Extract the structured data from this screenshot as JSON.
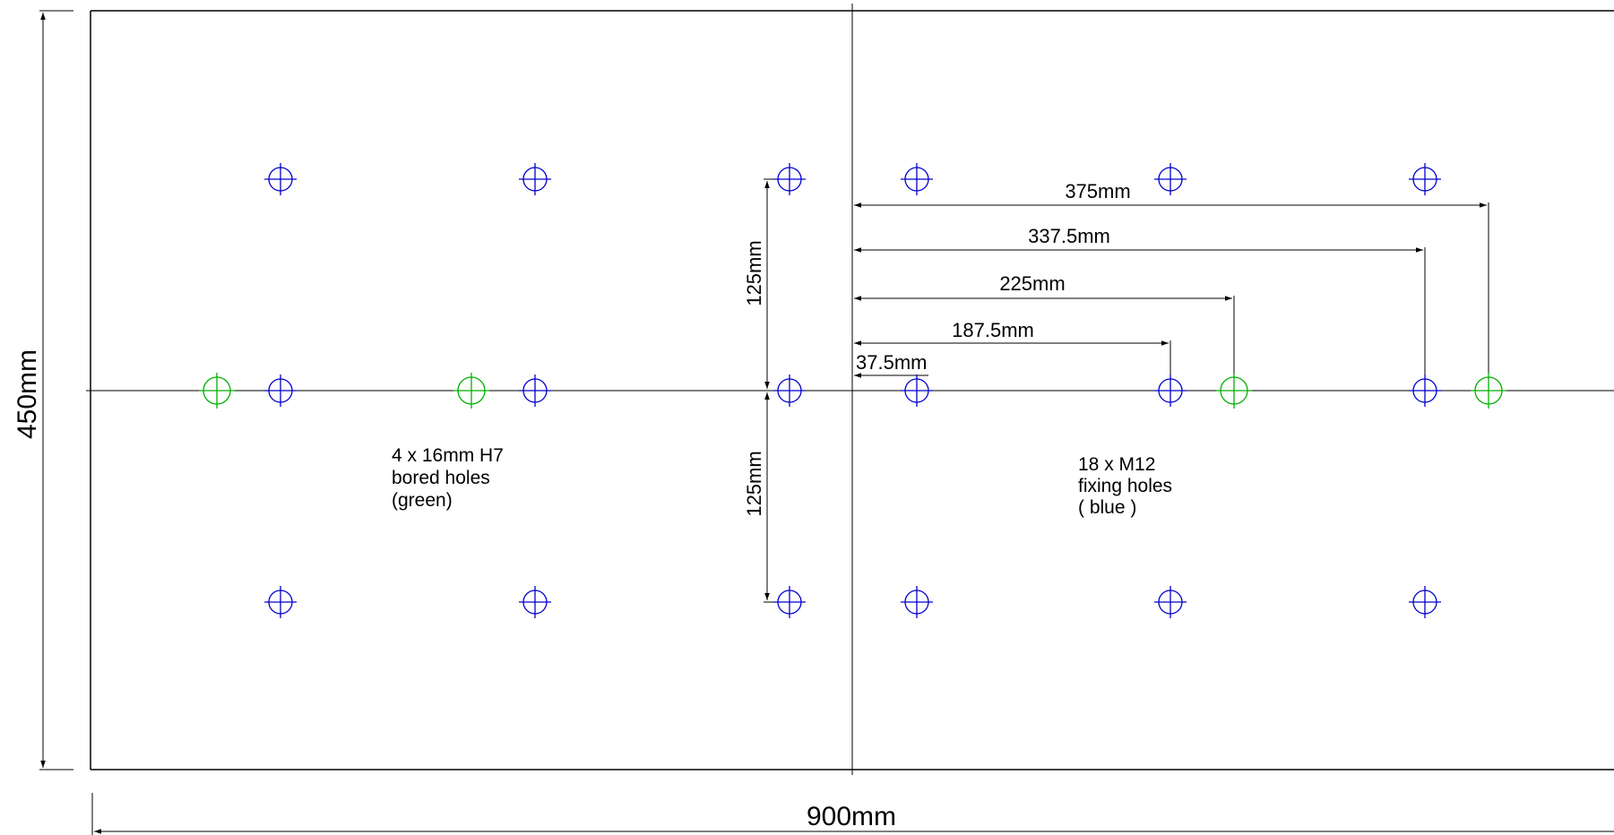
{
  "dimensions": {
    "width_label": "900mm",
    "height_label": "450mm",
    "upper_vertical_label": "125mm",
    "lower_vertical_label": "125mm",
    "horizontal_labels": [
      "375mm",
      "337.5mm",
      "225mm",
      "187.5mm",
      "37.5mm"
    ]
  },
  "notes": {
    "bored": [
      "4 x 16mm H7",
      "bored holes",
      "(green)"
    ],
    "fixing": [
      "18 x M12",
      "fixing holes",
      "( blue )"
    ]
  },
  "colors": {
    "fixing_holes": "#0000cc",
    "bored_holes": "#00b000",
    "lines": "#000000"
  }
}
